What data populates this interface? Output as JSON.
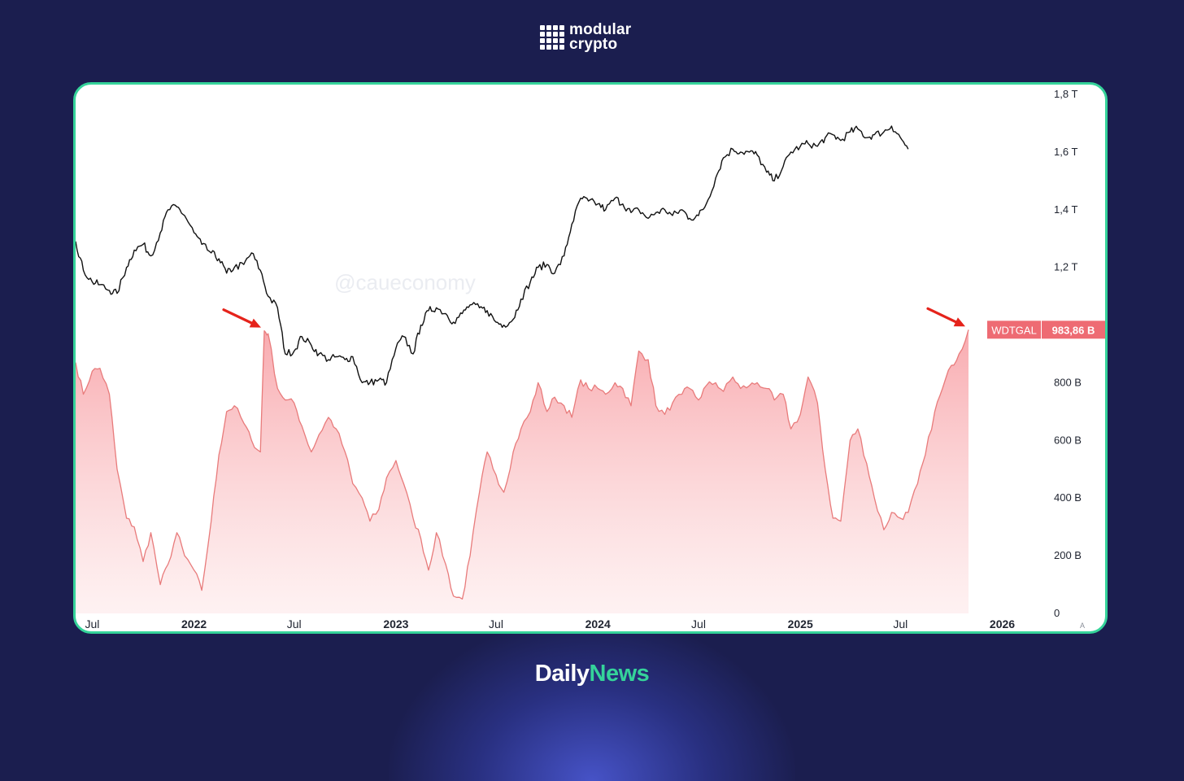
{
  "brand": {
    "logo_line1": "modular",
    "logo_line2": "crypto",
    "logo_icon": "grid-logo-icon"
  },
  "footer": {
    "part1": "Daily",
    "part2": "News"
  },
  "colors": {
    "background": "#1b1e4f",
    "card_border": "#35d39a",
    "area_stroke": "#e87b7b",
    "area_fill": "#f8a8ad",
    "line": "#111111",
    "label_bg": "#ee6b73"
  },
  "chart_data": {
    "type": "line",
    "watermark": "@caueconomy",
    "x_ticks": [
      "Jul",
      "2022",
      "Jul",
      "2023",
      "Jul",
      "2024",
      "Jul",
      "2025",
      "Jul",
      "2026"
    ],
    "x_tick_dates": [
      "2021-07-01",
      "2022-01-01",
      "2022-07-01",
      "2023-01-01",
      "2023-07-01",
      "2024-01-01",
      "2024-07-01",
      "2025-01-01",
      "2025-07-01",
      "2026-01-01"
    ],
    "y_ticks": [
      "0",
      "200 B",
      "400 B",
      "600 B",
      "800 B",
      "1,2 T",
      "1,4 T",
      "1,6 T",
      "1,8 T"
    ],
    "y_tick_values": [
      0,
      200,
      400,
      600,
      800,
      1200,
      1400,
      1600,
      1800
    ],
    "ylim": [
      0,
      1800
    ],
    "y_unit": "billions",
    "scale_mark": "A",
    "last_value_label": {
      "series": "WDTGAL",
      "value": "983,86 B"
    },
    "series": [
      {
        "name": "WDTGAL",
        "style": "area",
        "points": [
          [
            "2021-06-01",
            870
          ],
          [
            "2021-06-15",
            760
          ],
          [
            "2021-07-01",
            840
          ],
          [
            "2021-07-15",
            850
          ],
          [
            "2021-08-01",
            760
          ],
          [
            "2021-08-15",
            500
          ],
          [
            "2021-09-01",
            330
          ],
          [
            "2021-09-15",
            300
          ],
          [
            "2021-10-01",
            180
          ],
          [
            "2021-10-15",
            280
          ],
          [
            "2021-11-01",
            100
          ],
          [
            "2021-11-15",
            170
          ],
          [
            "2021-12-01",
            280
          ],
          [
            "2021-12-15",
            200
          ],
          [
            "2022-01-01",
            150
          ],
          [
            "2022-01-15",
            80
          ],
          [
            "2022-02-01",
            320
          ],
          [
            "2022-02-15",
            550
          ],
          [
            "2022-03-01",
            700
          ],
          [
            "2022-03-15",
            720
          ],
          [
            "2022-04-01",
            660
          ],
          [
            "2022-04-15",
            600
          ],
          [
            "2022-05-01",
            560
          ],
          [
            "2022-05-08",
            980
          ],
          [
            "2022-05-15",
            970
          ],
          [
            "2022-06-01",
            780
          ],
          [
            "2022-06-15",
            740
          ],
          [
            "2022-07-01",
            730
          ],
          [
            "2022-07-15",
            650
          ],
          [
            "2022-08-01",
            560
          ],
          [
            "2022-08-15",
            620
          ],
          [
            "2022-09-01",
            680
          ],
          [
            "2022-09-15",
            640
          ],
          [
            "2022-10-01",
            560
          ],
          [
            "2022-10-15",
            450
          ],
          [
            "2022-11-01",
            400
          ],
          [
            "2022-11-15",
            320
          ],
          [
            "2022-12-01",
            360
          ],
          [
            "2022-12-15",
            470
          ],
          [
            "2023-01-01",
            530
          ],
          [
            "2023-01-15",
            450
          ],
          [
            "2023-02-01",
            330
          ],
          [
            "2023-02-15",
            260
          ],
          [
            "2023-03-01",
            150
          ],
          [
            "2023-03-15",
            280
          ],
          [
            "2023-04-01",
            170
          ],
          [
            "2023-04-15",
            60
          ],
          [
            "2023-05-01",
            50
          ],
          [
            "2023-05-15",
            200
          ],
          [
            "2023-06-01",
            420
          ],
          [
            "2023-06-15",
            560
          ],
          [
            "2023-07-01",
            480
          ],
          [
            "2023-07-15",
            420
          ],
          [
            "2023-08-01",
            560
          ],
          [
            "2023-08-15",
            640
          ],
          [
            "2023-09-01",
            700
          ],
          [
            "2023-09-15",
            800
          ],
          [
            "2023-10-01",
            700
          ],
          [
            "2023-10-15",
            750
          ],
          [
            "2023-11-01",
            720
          ],
          [
            "2023-11-15",
            680
          ],
          [
            "2023-12-01",
            810
          ],
          [
            "2023-12-15",
            780
          ],
          [
            "2024-01-01",
            780
          ],
          [
            "2024-01-15",
            760
          ],
          [
            "2024-02-01",
            800
          ],
          [
            "2024-02-15",
            780
          ],
          [
            "2024-03-01",
            720
          ],
          [
            "2024-03-15",
            910
          ],
          [
            "2024-04-01",
            880
          ],
          [
            "2024-04-15",
            720
          ],
          [
            "2024-05-01",
            690
          ],
          [
            "2024-05-15",
            730
          ],
          [
            "2024-06-01",
            760
          ],
          [
            "2024-06-15",
            780
          ],
          [
            "2024-07-01",
            740
          ],
          [
            "2024-07-15",
            790
          ],
          [
            "2024-08-01",
            800
          ],
          [
            "2024-08-15",
            770
          ],
          [
            "2024-09-01",
            820
          ],
          [
            "2024-09-15",
            780
          ],
          [
            "2024-10-01",
            790
          ],
          [
            "2024-10-15",
            800
          ],
          [
            "2024-11-01",
            780
          ],
          [
            "2024-11-15",
            740
          ],
          [
            "2024-12-01",
            760
          ],
          [
            "2024-12-15",
            640
          ],
          [
            "2025-01-01",
            690
          ],
          [
            "2025-01-15",
            820
          ],
          [
            "2025-02-01",
            730
          ],
          [
            "2025-02-15",
            500
          ],
          [
            "2025-03-01",
            330
          ],
          [
            "2025-03-15",
            320
          ],
          [
            "2025-04-01",
            600
          ],
          [
            "2025-04-15",
            640
          ],
          [
            "2025-05-01",
            520
          ],
          [
            "2025-05-15",
            400
          ],
          [
            "2025-06-01",
            290
          ],
          [
            "2025-06-15",
            350
          ],
          [
            "2025-07-01",
            330
          ],
          [
            "2025-07-15",
            350
          ],
          [
            "2025-08-01",
            450
          ],
          [
            "2025-08-15",
            550
          ],
          [
            "2025-09-01",
            700
          ],
          [
            "2025-09-15",
            780
          ],
          [
            "2025-10-01",
            860
          ],
          [
            "2025-10-15",
            900
          ],
          [
            "2025-11-01",
            983.86
          ]
        ]
      },
      {
        "name": "",
        "style": "line",
        "points": [
          [
            "2021-06-01",
            1290
          ],
          [
            "2021-06-15",
            1190
          ],
          [
            "2021-07-01",
            1150
          ],
          [
            "2021-07-15",
            1140
          ],
          [
            "2021-08-01",
            1120
          ],
          [
            "2021-08-15",
            1110
          ],
          [
            "2021-09-01",
            1200
          ],
          [
            "2021-09-15",
            1260
          ],
          [
            "2021-10-01",
            1280
          ],
          [
            "2021-10-15",
            1240
          ],
          [
            "2021-11-01",
            1320
          ],
          [
            "2021-11-15",
            1400
          ],
          [
            "2021-12-01",
            1410
          ],
          [
            "2021-12-15",
            1380
          ],
          [
            "2022-01-01",
            1320
          ],
          [
            "2022-01-15",
            1280
          ],
          [
            "2022-02-01",
            1250
          ],
          [
            "2022-02-15",
            1230
          ],
          [
            "2022-03-01",
            1180
          ],
          [
            "2022-03-15",
            1200
          ],
          [
            "2022-04-01",
            1210
          ],
          [
            "2022-04-15",
            1250
          ],
          [
            "2022-05-01",
            1190
          ],
          [
            "2022-05-15",
            1100
          ],
          [
            "2022-06-01",
            1060
          ],
          [
            "2022-06-15",
            900
          ],
          [
            "2022-07-01",
            910
          ],
          [
            "2022-07-15",
            960
          ],
          [
            "2022-08-01",
            930
          ],
          [
            "2022-08-15",
            900
          ],
          [
            "2022-09-01",
            880
          ],
          [
            "2022-09-15",
            890
          ],
          [
            "2022-10-01",
            880
          ],
          [
            "2022-10-15",
            890
          ],
          [
            "2022-11-01",
            800
          ],
          [
            "2022-11-15",
            800
          ],
          [
            "2022-12-01",
            810
          ],
          [
            "2022-12-15",
            800
          ],
          [
            "2023-01-01",
            920
          ],
          [
            "2023-01-15",
            960
          ],
          [
            "2023-02-01",
            900
          ],
          [
            "2023-02-15",
            1000
          ],
          [
            "2023-03-01",
            1050
          ],
          [
            "2023-03-15",
            1060
          ],
          [
            "2023-04-01",
            1040
          ],
          [
            "2023-04-15",
            1010
          ],
          [
            "2023-05-01",
            1040
          ],
          [
            "2023-05-15",
            1070
          ],
          [
            "2023-06-01",
            1060
          ],
          [
            "2023-06-15",
            1050
          ],
          [
            "2023-07-01",
            1010
          ],
          [
            "2023-07-15",
            1000
          ],
          [
            "2023-08-01",
            1020
          ],
          [
            "2023-08-15",
            1090
          ],
          [
            "2023-09-01",
            1150
          ],
          [
            "2023-09-15",
            1200
          ],
          [
            "2023-10-01",
            1210
          ],
          [
            "2023-10-15",
            1180
          ],
          [
            "2023-11-01",
            1240
          ],
          [
            "2023-11-15",
            1350
          ],
          [
            "2023-12-01",
            1440
          ],
          [
            "2023-12-15",
            1430
          ],
          [
            "2024-01-01",
            1420
          ],
          [
            "2024-01-15",
            1400
          ],
          [
            "2024-02-01",
            1440
          ],
          [
            "2024-02-15",
            1420
          ],
          [
            "2024-03-01",
            1390
          ],
          [
            "2024-03-15",
            1400
          ],
          [
            "2024-04-01",
            1370
          ],
          [
            "2024-04-15",
            1390
          ],
          [
            "2024-05-01",
            1400
          ],
          [
            "2024-05-15",
            1380
          ],
          [
            "2024-06-01",
            1400
          ],
          [
            "2024-06-15",
            1370
          ],
          [
            "2024-07-01",
            1380
          ],
          [
            "2024-07-15",
            1420
          ],
          [
            "2024-08-01",
            1510
          ],
          [
            "2024-08-15",
            1580
          ],
          [
            "2024-09-01",
            1610
          ],
          [
            "2024-09-15",
            1600
          ],
          [
            "2024-10-01",
            1600
          ],
          [
            "2024-10-15",
            1590
          ],
          [
            "2024-11-01",
            1530
          ],
          [
            "2024-11-15",
            1500
          ],
          [
            "2024-12-01",
            1550
          ],
          [
            "2024-12-15",
            1600
          ],
          [
            "2025-01-01",
            1620
          ],
          [
            "2025-01-15",
            1630
          ],
          [
            "2025-02-01",
            1620
          ],
          [
            "2025-02-15",
            1650
          ],
          [
            "2025-03-01",
            1660
          ],
          [
            "2025-03-15",
            1640
          ],
          [
            "2025-04-01",
            1670
          ],
          [
            "2025-04-15",
            1680
          ],
          [
            "2025-05-01",
            1650
          ],
          [
            "2025-05-15",
            1660
          ],
          [
            "2025-06-01",
            1670
          ],
          [
            "2025-06-15",
            1690
          ],
          [
            "2025-07-01",
            1650
          ],
          [
            "2025-07-15",
            1610
          ]
        ]
      }
    ],
    "annotations": [
      {
        "type": "arrow",
        "color": "#e5231b",
        "target": [
          "2022-05-08",
          980
        ]
      },
      {
        "type": "arrow",
        "color": "#e5231b",
        "target": [
          "2025-11-01",
          983.86
        ]
      }
    ]
  }
}
